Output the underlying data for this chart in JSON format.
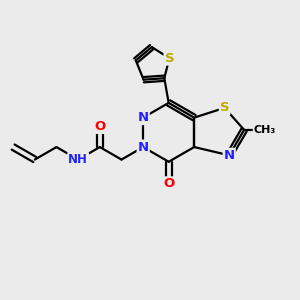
{
  "bg_color": "#ebebeb",
  "atom_colors": {
    "C": "#000000",
    "N": "#2222ff",
    "O": "#ff0000",
    "S": "#bbaa00",
    "H": "#008080"
  },
  "bond_color": "#000000",
  "bond_width": 1.6,
  "font_size": 9.5,
  "title": ""
}
